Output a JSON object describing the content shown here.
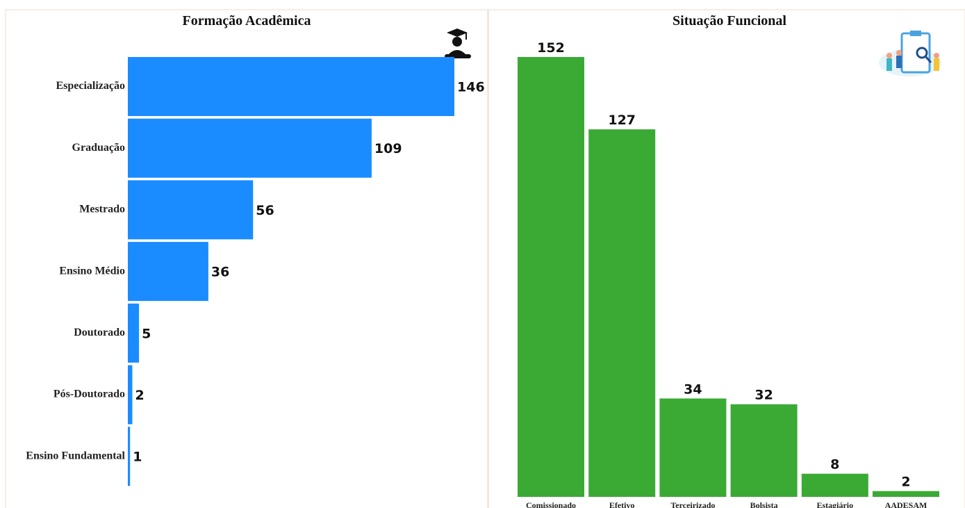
{
  "chart_data": [
    {
      "type": "bar",
      "orientation": "horizontal",
      "title": "Formação Acadêmica",
      "color": "#1a8cff",
      "categories": [
        "Especialização",
        "Graduação",
        "Mestrado",
        "Ensino Médio",
        "Doutorado",
        "Pós-Doutorado",
        "Ensino Fundamental"
      ],
      "values": [
        146,
        109,
        56,
        36,
        5,
        2,
        1
      ]
    },
    {
      "type": "bar",
      "orientation": "vertical",
      "title": "Situação Funcional",
      "color": "#3aaa35",
      "categories": [
        "Comissionado",
        "Efetivo",
        "Terceirizado",
        "Bolsista",
        "Estagiário",
        "AADESAM"
      ],
      "values": [
        152,
        127,
        34,
        32,
        8,
        2
      ]
    }
  ]
}
